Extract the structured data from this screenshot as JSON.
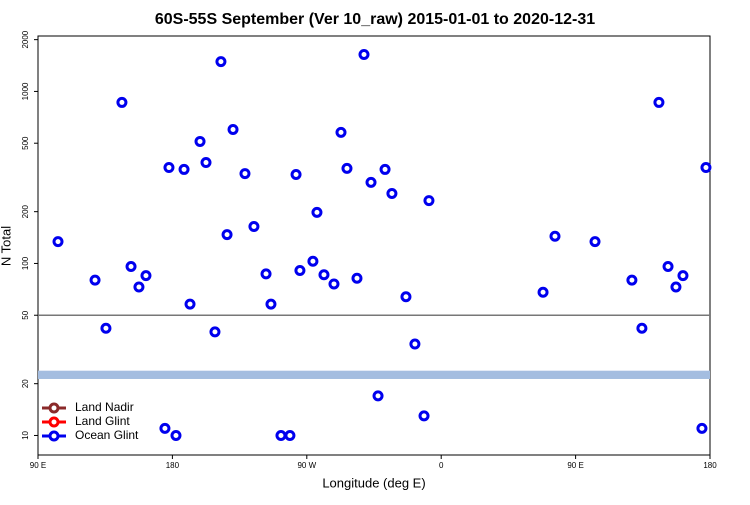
{
  "chart_data": {
    "type": "scatter",
    "title": "60S-55S September (Ver 10_raw)   2015-01-01 to 2020-12-31",
    "xlabel": "Longitude (deg E)",
    "ylabel": "N Total",
    "xlim": [
      90,
      540
    ],
    "xticks": [
      {
        "value": 90,
        "label": "90 E"
      },
      {
        "value": 180,
        "label": "180"
      },
      {
        "value": 270,
        "label": "90 W"
      },
      {
        "value": 360,
        "label": "0"
      },
      {
        "value": 450,
        "label": "90 E"
      },
      {
        "value": 540,
        "label": "180"
      }
    ],
    "ylim": [
      7.7,
      2100
    ],
    "yticks": [
      10,
      20,
      50,
      100,
      200,
      500,
      1000,
      2000
    ],
    "log_y": true,
    "reference_line": 50,
    "band": [
      21.3,
      23.8
    ],
    "legend": "bottom-left",
    "series": [
      {
        "name": "Land Nadir",
        "color": "#8b2a2a",
        "x": [],
        "values": []
      },
      {
        "name": "Land Glint",
        "color": "#ff0000",
        "x": [],
        "values": []
      },
      {
        "name": "Ocean Glint",
        "color": "#0000ee",
        "x": [
          103.4,
          128.2,
          135.5,
          146.2,
          152.3,
          157.6,
          162.3,
          175.0,
          177.7,
          182.4,
          187.8,
          191.8,
          198.5,
          202.5,
          208.5,
          212.5,
          216.6,
          220.6,
          228.6,
          234.6,
          242.7,
          246.0,
          252.7,
          258.7,
          262.8,
          265.4,
          274.1,
          276.8,
          281.5,
          288.2,
          292.9,
          296.9,
          303.6,
          308.3,
          313.0,
          317.7,
          322.4,
          327.0,
          336.4,
          342.4,
          348.5,
          351.8,
          428.2,
          436.2,
          463.0,
          487.7,
          494.4,
          505.8,
          511.9,
          517.2,
          521.9,
          534.6,
          537.3
        ],
        "values": [
          134,
          80,
          42,
          863,
          96,
          73,
          85,
          11,
          361,
          10,
          352,
          58,
          512,
          386,
          40,
          1490,
          147,
          601,
          333,
          164,
          87,
          58,
          10,
          10,
          329,
          91,
          103,
          198,
          86,
          76,
          578,
          357,
          82,
          1640,
          296,
          17,
          352,
          255,
          64,
          34,
          13,
          232,
          68,
          144,
          134,
          80,
          42,
          863,
          96,
          73,
          85,
          11,
          361
        ]
      }
    ]
  }
}
